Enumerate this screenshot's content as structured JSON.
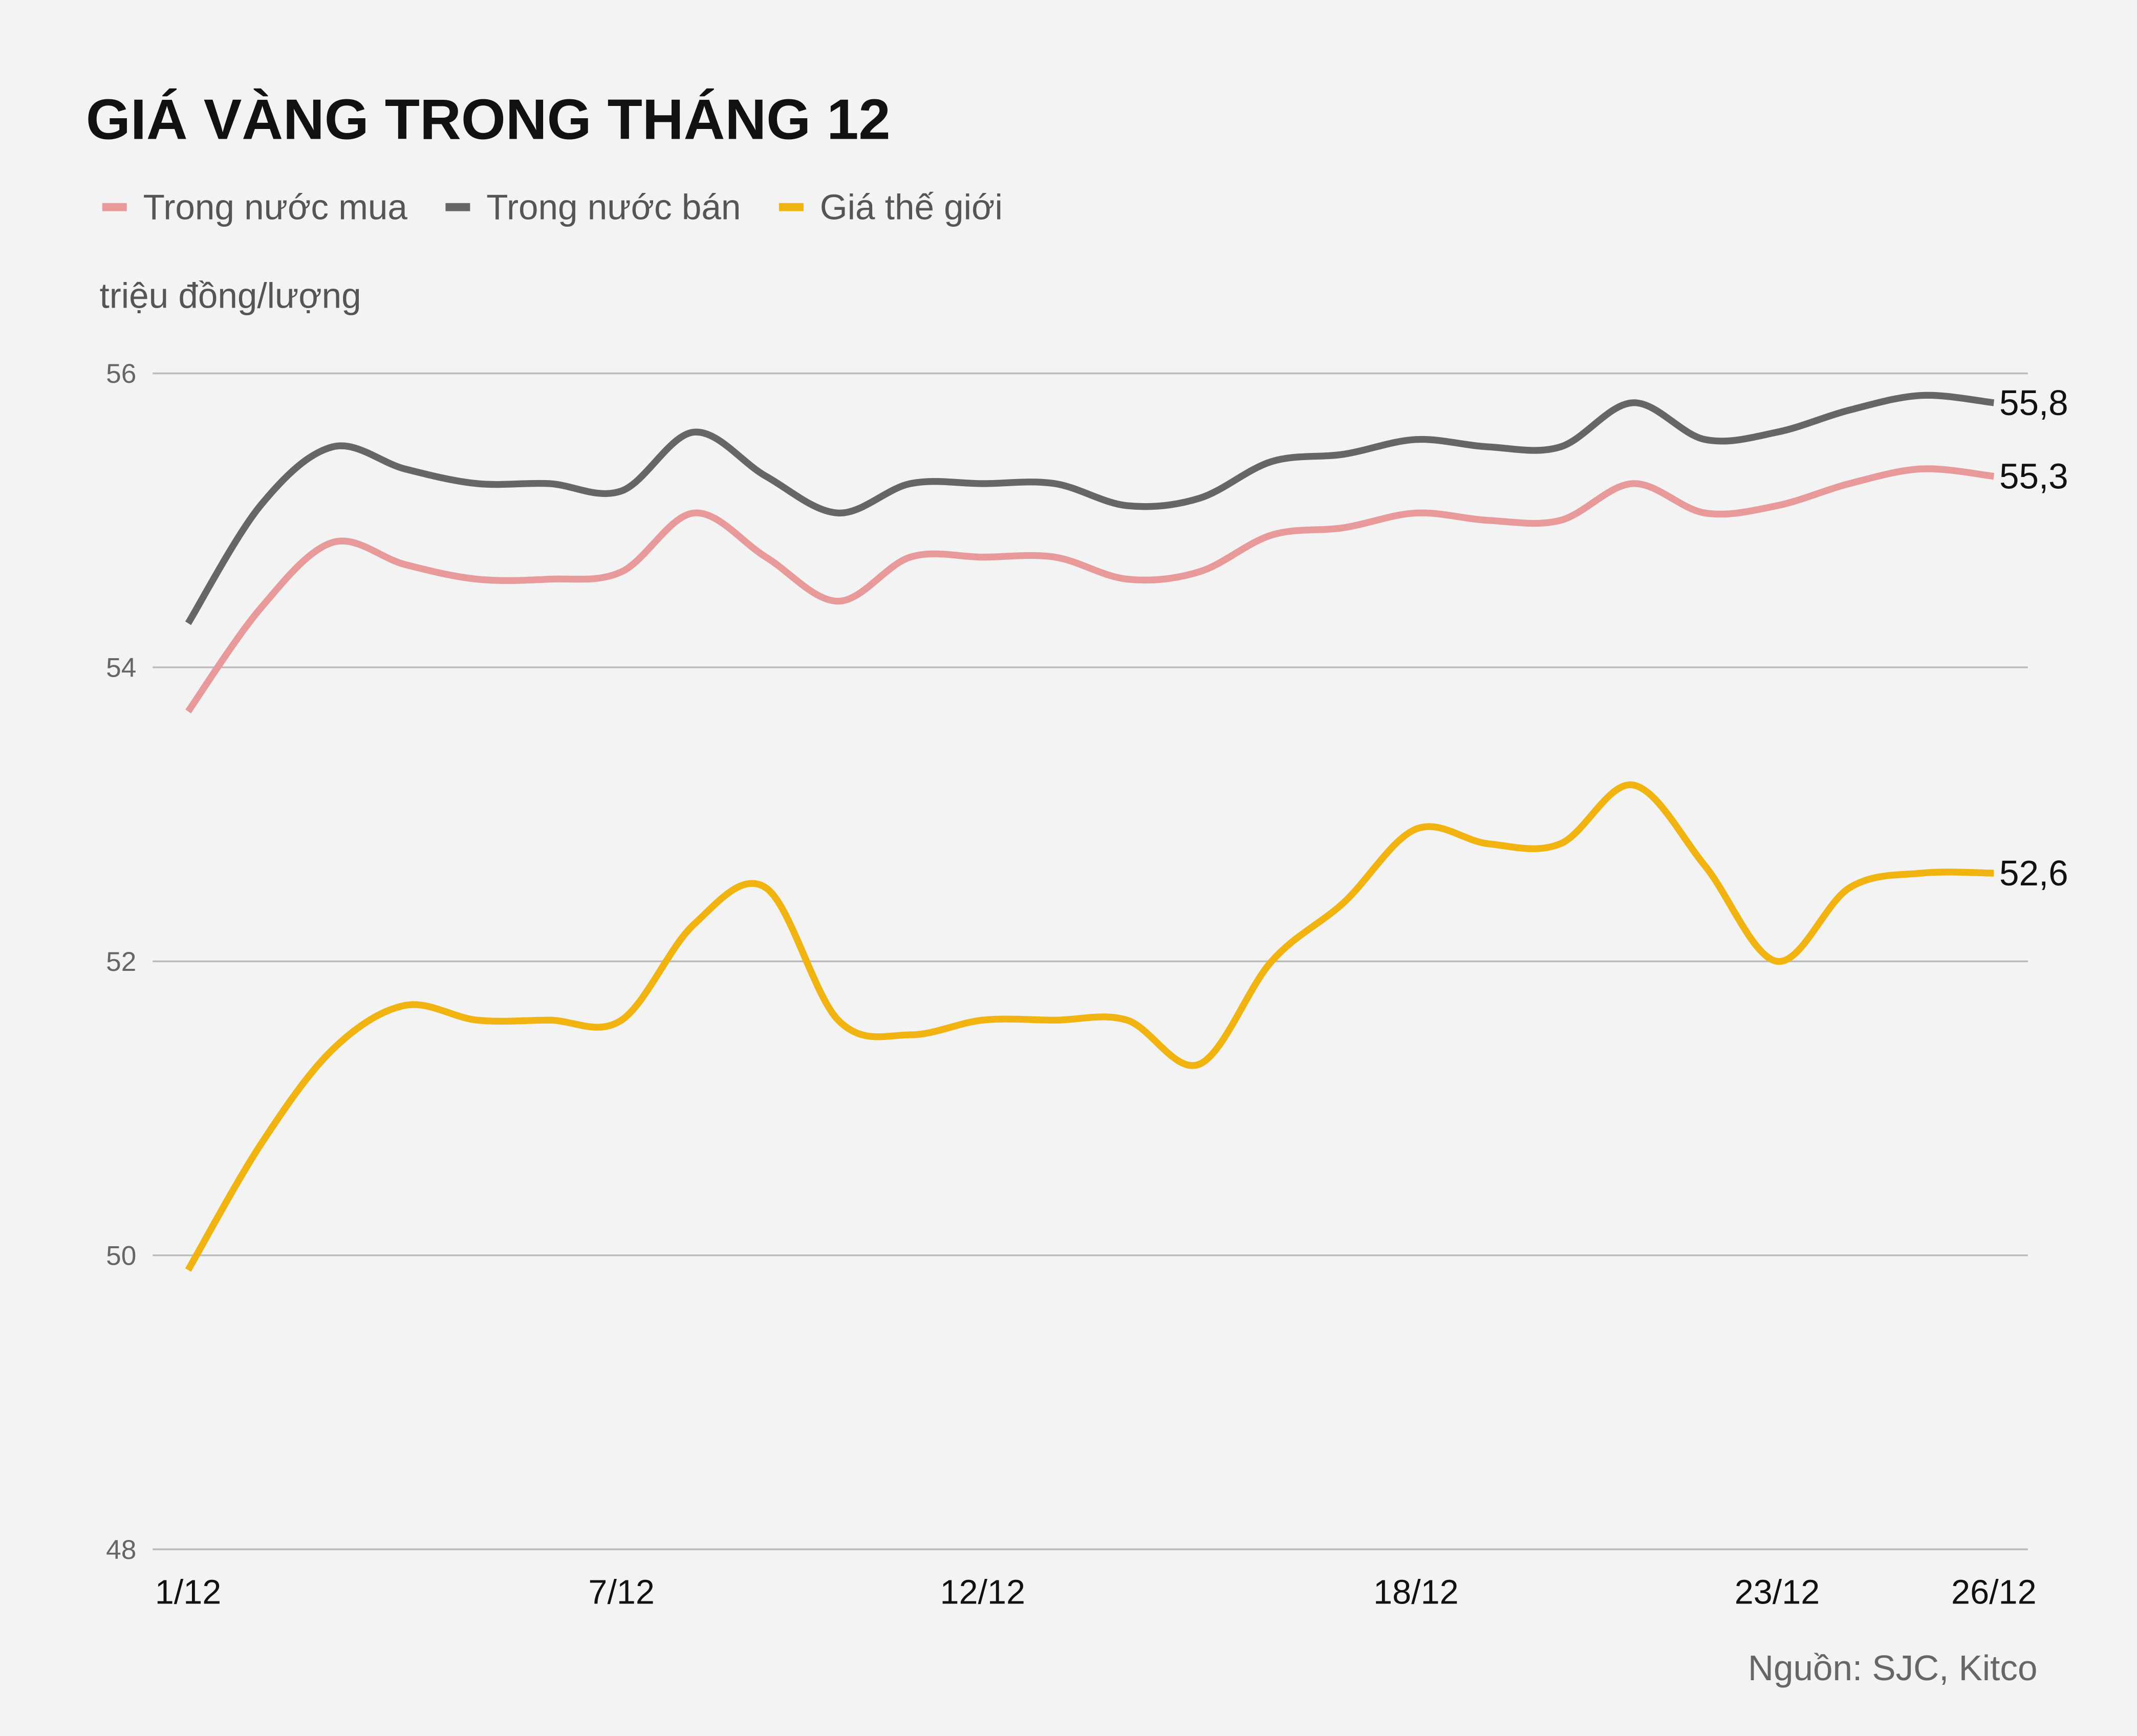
{
  "chart_data": {
    "type": "line",
    "title": "GIÁ VÀNG TRONG THÁNG 12",
    "y_label": "triệu đồng/lượng",
    "source": "Nguồn: SJC, Kitco",
    "categories": [
      "1/12",
      null,
      null,
      null,
      null,
      null,
      "7/12",
      null,
      null,
      null,
      null,
      "12/12",
      null,
      null,
      null,
      null,
      null,
      "18/12",
      null,
      null,
      null,
      null,
      "23/12",
      null,
      null,
      "26/12"
    ],
    "series": [
      {
        "name": "Trong nước mua",
        "color": "#e89a9a",
        "values": [
          53.7,
          54.4,
          54.85,
          54.7,
          54.6,
          54.6,
          54.65,
          55.05,
          54.75,
          54.45,
          54.75,
          54.75,
          54.75,
          54.6,
          54.65,
          54.9,
          54.95,
          55.05,
          55.0,
          55.0,
          55.25,
          55.05,
          55.1,
          55.25,
          55.35,
          55.3
        ],
        "value_labels": [
          null,
          null,
          null,
          null,
          null,
          null,
          null,
          null,
          null,
          null,
          null,
          null,
          null,
          null,
          null,
          null,
          null,
          null,
          null,
          null,
          null,
          null,
          null,
          null,
          null,
          "55,3"
        ]
      },
      {
        "name": "Trong nước bán",
        "color": "#666666",
        "values": [
          54.3,
          55.1,
          55.5,
          55.35,
          55.25,
          55.25,
          55.2,
          55.6,
          55.3,
          55.05,
          55.25,
          55.25,
          55.25,
          55.1,
          55.15,
          55.4,
          55.45,
          55.55,
          55.5,
          55.5,
          55.8,
          55.55,
          55.6,
          55.75,
          55.85,
          55.8
        ],
        "value_labels": [
          null,
          null,
          null,
          null,
          null,
          null,
          null,
          null,
          null,
          null,
          null,
          null,
          null,
          null,
          null,
          null,
          null,
          null,
          null,
          null,
          null,
          null,
          null,
          null,
          null,
          "55,8"
        ]
      },
      {
        "name": "Giá thế giới",
        "color": "#f0b30f",
        "values": [
          49.9,
          50.75,
          51.4,
          51.7,
          51.6,
          51.6,
          51.6,
          52.25,
          52.5,
          51.6,
          51.5,
          51.6,
          51.6,
          51.6,
          51.3,
          52.0,
          52.4,
          52.9,
          52.8,
          52.8,
          53.2,
          52.65,
          52.0,
          52.5,
          52.6,
          52.6
        ],
        "value_labels": [
          null,
          null,
          null,
          null,
          null,
          null,
          null,
          null,
          null,
          null,
          null,
          null,
          null,
          null,
          null,
          null,
          null,
          null,
          null,
          null,
          null,
          null,
          null,
          null,
          null,
          "52,6"
        ]
      }
    ],
    "ylim": [
      48,
      56
    ],
    "yticks": [
      48,
      50,
      52,
      54,
      56
    ],
    "grid": true
  }
}
